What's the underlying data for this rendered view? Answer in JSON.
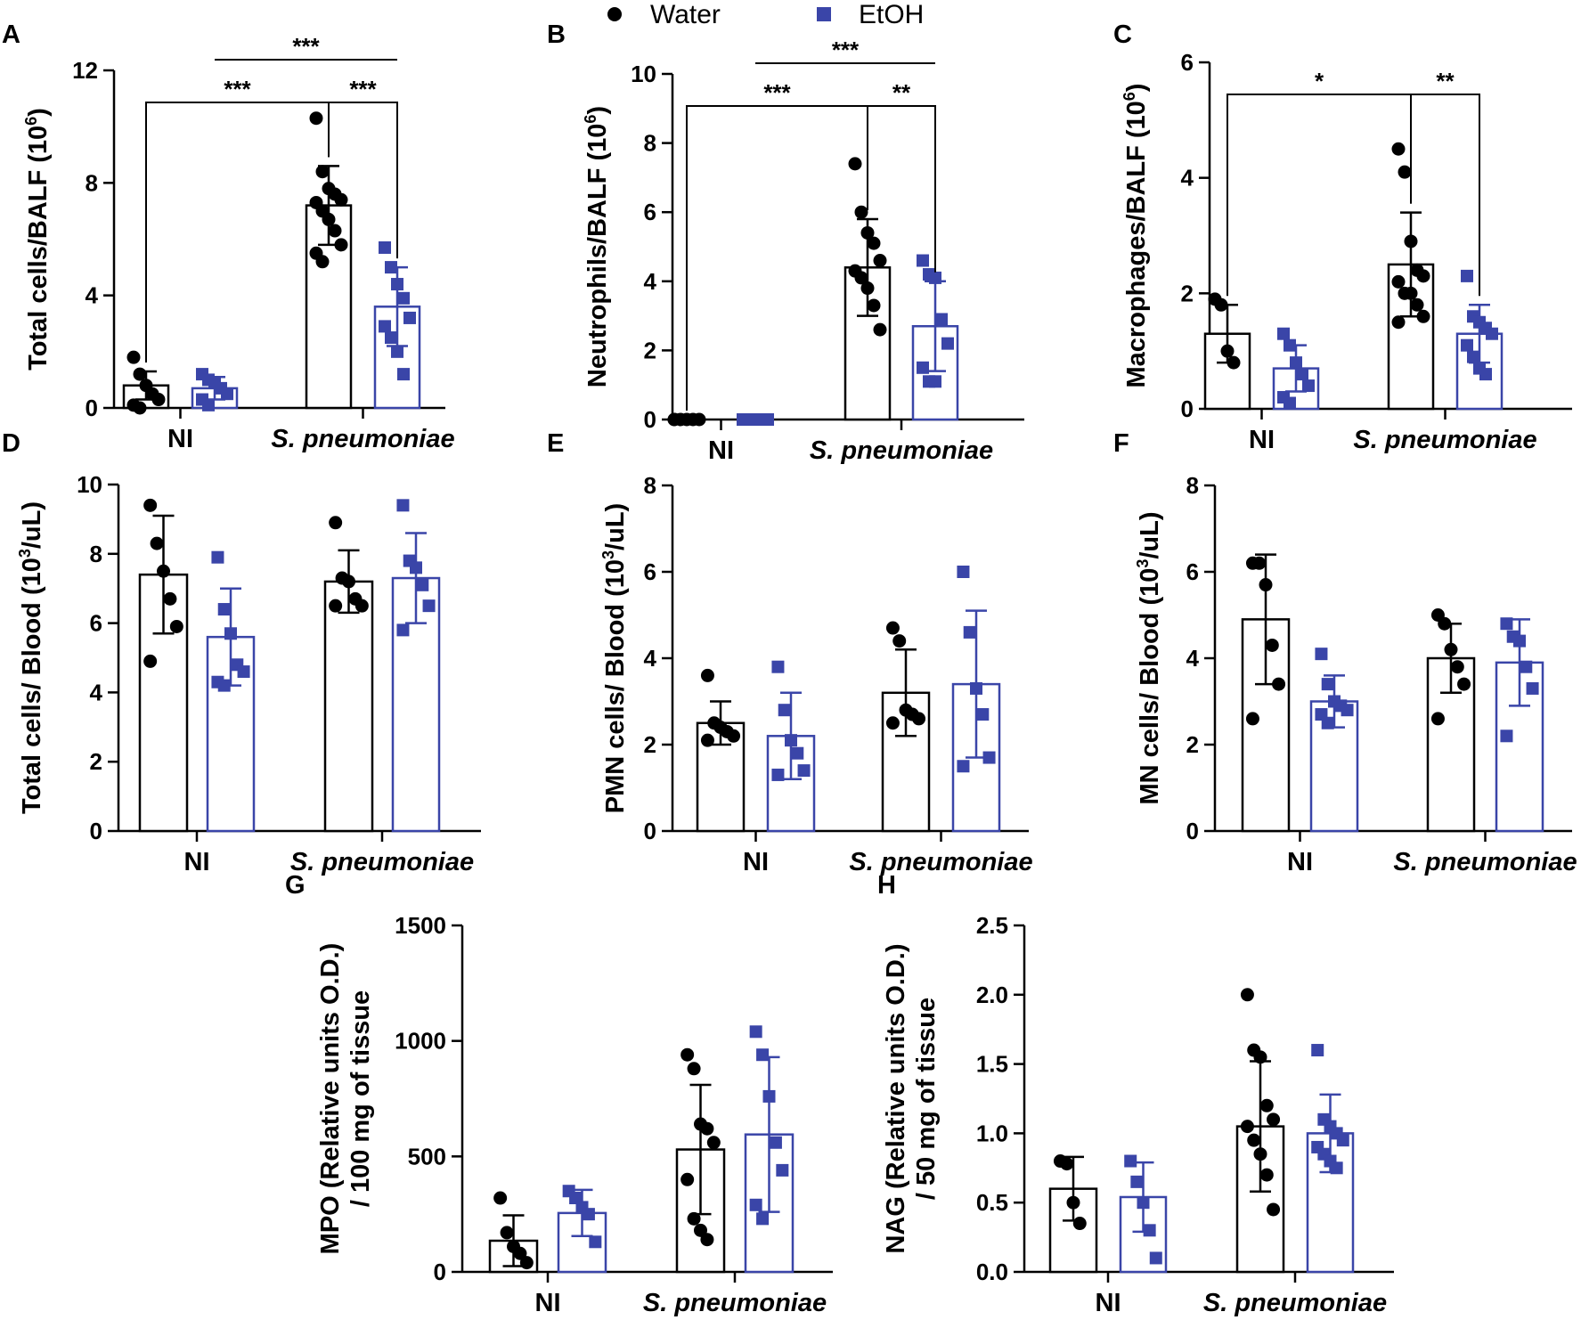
{
  "legend": {
    "items": [
      {
        "label": "Water",
        "color": "#000000",
        "marker": "circle"
      },
      {
        "label": "EtOH",
        "color": "#3a45a8",
        "marker": "square"
      }
    ]
  },
  "colors": {
    "water": "#000000",
    "etoh": "#3a45a8",
    "axis": "#000000"
  },
  "chart_data": [
    {
      "panel": "A",
      "type": "bar",
      "categories": [
        "NI",
        "S. pneumoniae"
      ],
      "ylabel": "Total cells/BALF (10^6)",
      "ylabel_parts": [
        "Total cells/BALF (10",
        "6",
        ")"
      ],
      "ylim": [
        0,
        12
      ],
      "yticks": [
        0,
        4,
        8,
        12
      ],
      "series": [
        {
          "name": "Water",
          "means": [
            0.8,
            7.2
          ],
          "sd": [
            0.5,
            1.4
          ],
          "points": [
            [
              1.8,
              1.2,
              0.8,
              0.5,
              0.3,
              0.1,
              0.0
            ],
            [
              10.3,
              8.4,
              7.8,
              7.6,
              7.4,
              7.3,
              7.0,
              6.7,
              6.3,
              5.8,
              5.5,
              5.2
            ]
          ]
        },
        {
          "name": "EtOH",
          "means": [
            0.7,
            3.6
          ],
          "sd": [
            0.4,
            1.4
          ],
          "points": [
            [
              1.2,
              1.0,
              0.9,
              0.7,
              0.5,
              0.3,
              0.1
            ],
            [
              5.7,
              5.0,
              4.4,
              3.9,
              3.2,
              2.9,
              2.5,
              2.0,
              1.2
            ]
          ]
        }
      ],
      "brackets": [
        {
          "from": [
            0,
            0
          ],
          "to": [
            1,
            0
          ],
          "label": "***",
          "level": 1
        },
        {
          "from": [
            1,
            0
          ],
          "to": [
            1,
            1
          ],
          "label": "***",
          "level": 1
        },
        {
          "from": [
            0,
            1
          ],
          "to": [
            1,
            1
          ],
          "label": "***",
          "level": 2
        }
      ]
    },
    {
      "panel": "B",
      "type": "bar",
      "categories": [
        "NI",
        "S. pneumoniae"
      ],
      "ylabel": "Neutrophils/BALF (10^6)",
      "ylabel_parts": [
        "Neutrophils/BALF (10",
        "6",
        ")"
      ],
      "ylim": [
        0,
        10
      ],
      "yticks": [
        0,
        2,
        4,
        6,
        8,
        10
      ],
      "series": [
        {
          "name": "Water",
          "means": [
            0.0,
            4.4
          ],
          "sd": [
            0.0,
            1.4
          ],
          "points": [
            [
              0,
              0,
              0,
              0,
              0,
              0
            ],
            [
              7.4,
              6.0,
              5.4,
              5.1,
              4.6,
              4.3,
              4.1,
              3.8,
              3.3,
              2.6
            ]
          ]
        },
        {
          "name": "EtOH",
          "means": [
            0.0,
            2.7
          ],
          "sd": [
            0.0,
            1.3
          ],
          "points": [
            [
              0,
              0,
              0,
              0,
              0,
              0
            ],
            [
              4.6,
              4.2,
              4.1,
              2.9,
              2.2,
              1.5,
              1.1,
              1.1
            ]
          ]
        }
      ],
      "brackets": [
        {
          "from": [
            0,
            0
          ],
          "to": [
            1,
            0
          ],
          "label": "***",
          "level": 1
        },
        {
          "from": [
            1,
            0
          ],
          "to": [
            1,
            1
          ],
          "label": "**",
          "level": 1
        },
        {
          "from": [
            0,
            1
          ],
          "to": [
            1,
            1
          ],
          "label": "***",
          "level": 2
        }
      ]
    },
    {
      "panel": "C",
      "type": "bar",
      "categories": [
        "NI",
        "S. pneumoniae"
      ],
      "ylabel": "Macrophages/BALF (10^6)",
      "ylabel_parts": [
        "Macrophages/BALF (10",
        "6",
        ")"
      ],
      "ylim": [
        0,
        6
      ],
      "yticks": [
        0,
        2,
        4,
        6
      ],
      "series": [
        {
          "name": "Water",
          "means": [
            1.3,
            2.5
          ],
          "sd": [
            0.5,
            0.9
          ],
          "points": [
            [
              1.9,
              1.8,
              1.0,
              0.8
            ],
            [
              4.5,
              4.1,
              2.9,
              2.4,
              2.3,
              2.2,
              2.0,
              2.0,
              1.8,
              1.6,
              1.5
            ]
          ]
        },
        {
          "name": "EtOH",
          "means": [
            0.7,
            1.3
          ],
          "sd": [
            0.4,
            0.5
          ],
          "points": [
            [
              1.3,
              1.1,
              0.8,
              0.6,
              0.4,
              0.2,
              0.1
            ],
            [
              2.3,
              1.6,
              1.5,
              1.4,
              1.3,
              1.1,
              0.9,
              0.7,
              0.6
            ]
          ]
        }
      ],
      "brackets": [
        {
          "from": [
            0,
            0
          ],
          "to": [
            1,
            0
          ],
          "label": "*",
          "level": 1
        },
        {
          "from": [
            1,
            0
          ],
          "to": [
            1,
            1
          ],
          "label": "**",
          "level": 1
        }
      ]
    },
    {
      "panel": "D",
      "type": "bar",
      "categories": [
        "NI",
        "S. pneumoniae"
      ],
      "ylabel": "Total cells/ Blood (10^3/uL)",
      "ylabel_parts": [
        "Total cells/ Blood (10",
        "3",
        "/uL)"
      ],
      "ylim": [
        0,
        10
      ],
      "yticks": [
        0,
        2,
        4,
        6,
        8,
        10
      ],
      "series": [
        {
          "name": "Water",
          "means": [
            7.4,
            7.2
          ],
          "sd": [
            1.7,
            0.9
          ],
          "points": [
            [
              9.4,
              8.3,
              7.5,
              6.7,
              5.9,
              4.9
            ],
            [
              8.9,
              7.3,
              7.2,
              6.7,
              6.5,
              6.5
            ]
          ]
        },
        {
          "name": "EtOH",
          "means": [
            5.6,
            7.3
          ],
          "sd": [
            1.4,
            1.3
          ],
          "points": [
            [
              7.9,
              6.4,
              5.7,
              4.8,
              4.6,
              4.3,
              4.2
            ],
            [
              9.4,
              7.8,
              7.6,
              7.1,
              6.5,
              5.8
            ]
          ]
        }
      ],
      "brackets": []
    },
    {
      "panel": "E",
      "type": "bar",
      "categories": [
        "NI",
        "S. pneumoniae"
      ],
      "ylabel": "PMN cells/ Blood (10^3/uL)",
      "ylabel_parts": [
        "PMN cells/ Blood (10",
        "3",
        "/uL)"
      ],
      "ylim": [
        0,
        8
      ],
      "yticks": [
        0,
        2,
        4,
        6,
        8
      ],
      "series": [
        {
          "name": "Water",
          "means": [
            2.5,
            3.2
          ],
          "sd": [
            0.5,
            1.0
          ],
          "points": [
            [
              3.6,
              2.5,
              2.4,
              2.3,
              2.2,
              2.1
            ],
            [
              4.7,
              4.4,
              2.8,
              2.7,
              2.6,
              2.5
            ]
          ]
        },
        {
          "name": "EtOH",
          "means": [
            2.2,
            3.4
          ],
          "sd": [
            1.0,
            1.7
          ],
          "points": [
            [
              3.8,
              2.8,
              2.1,
              1.8,
              1.4,
              1.3
            ],
            [
              6.0,
              4.6,
              3.3,
              2.7,
              1.7,
              1.5
            ]
          ]
        }
      ],
      "brackets": []
    },
    {
      "panel": "F",
      "type": "bar",
      "categories": [
        "NI",
        "S. pneumoniae"
      ],
      "ylabel": "MN cells/ Blood (10^3/uL)",
      "ylabel_parts": [
        "MN cells/ Blood (10",
        "3",
        "/uL)"
      ],
      "ylim": [
        0,
        8
      ],
      "yticks": [
        0,
        2,
        4,
        6,
        8
      ],
      "series": [
        {
          "name": "Water",
          "means": [
            4.9,
            4.0
          ],
          "sd": [
            1.5,
            0.8
          ],
          "points": [
            [
              6.2,
              6.2,
              5.7,
              4.3,
              3.4,
              2.6
            ],
            [
              5.0,
              4.8,
              4.2,
              3.8,
              3.4,
              2.6
            ]
          ]
        },
        {
          "name": "EtOH",
          "means": [
            3.0,
            3.9
          ],
          "sd": [
            0.6,
            1.0
          ],
          "points": [
            [
              4.1,
              3.4,
              3.0,
              2.9,
              2.8,
              2.7,
              2.5
            ],
            [
              4.8,
              4.5,
              4.4,
              3.8,
              3.3,
              2.2
            ]
          ]
        }
      ],
      "brackets": []
    },
    {
      "panel": "G",
      "type": "bar",
      "categories": [
        "NI",
        "S. pneumoniae"
      ],
      "ylabel": "MPO (Relative units O.D.) / 100 mg of tissue",
      "ylabel_lines": [
        "MPO (Relative units O.D.)",
        "/ 100 mg of tissue"
      ],
      "ylim": [
        0,
        1500
      ],
      "yticks": [
        0,
        500,
        1000,
        1500
      ],
      "series": [
        {
          "name": "Water",
          "means": [
            135,
            530
          ],
          "sd": [
            110,
            280
          ],
          "points": [
            [
              320,
              170,
              110,
              80,
              40
            ],
            [
              940,
              880,
              640,
              620,
              560,
              400,
              230,
              180,
              140
            ]
          ]
        },
        {
          "name": "EtOH",
          "means": [
            255,
            595
          ],
          "sd": [
            100,
            335
          ],
          "points": [
            [
              350,
              320,
              280,
              250,
              130
            ],
            [
              1040,
              940,
              760,
              560,
              440,
              290,
              230
            ]
          ]
        }
      ],
      "brackets": []
    },
    {
      "panel": "H",
      "type": "bar",
      "categories": [
        "NI",
        "S. pneumoniae"
      ],
      "ylabel": "NAG (Relative units O.D.) / 50 mg of tissue",
      "ylabel_lines": [
        "NAG (Relative units O.D.)",
        "/ 50 mg of tissue"
      ],
      "ylim": [
        0,
        2.5
      ],
      "yticks": [
        "0.0",
        "0.5",
        "1.0",
        "1.5",
        "2.0",
        "2.5"
      ],
      "series": [
        {
          "name": "Water",
          "means": [
            0.6,
            1.05
          ],
          "sd": [
            0.23,
            0.47
          ],
          "points": [
            [
              0.8,
              0.78,
              0.5,
              0.35
            ],
            [
              2.0,
              1.6,
              1.55,
              1.2,
              1.1,
              1.05,
              0.95,
              0.85,
              0.7,
              0.45
            ]
          ]
        },
        {
          "name": "EtOH",
          "means": [
            0.54,
            1.0
          ],
          "sd": [
            0.25,
            0.28
          ],
          "points": [
            [
              0.8,
              0.65,
              0.5,
              0.3,
              0.1
            ],
            [
              1.6,
              1.1,
              1.05,
              1.0,
              0.95,
              0.9,
              0.85,
              0.8,
              0.75
            ]
          ]
        }
      ],
      "brackets": []
    }
  ]
}
